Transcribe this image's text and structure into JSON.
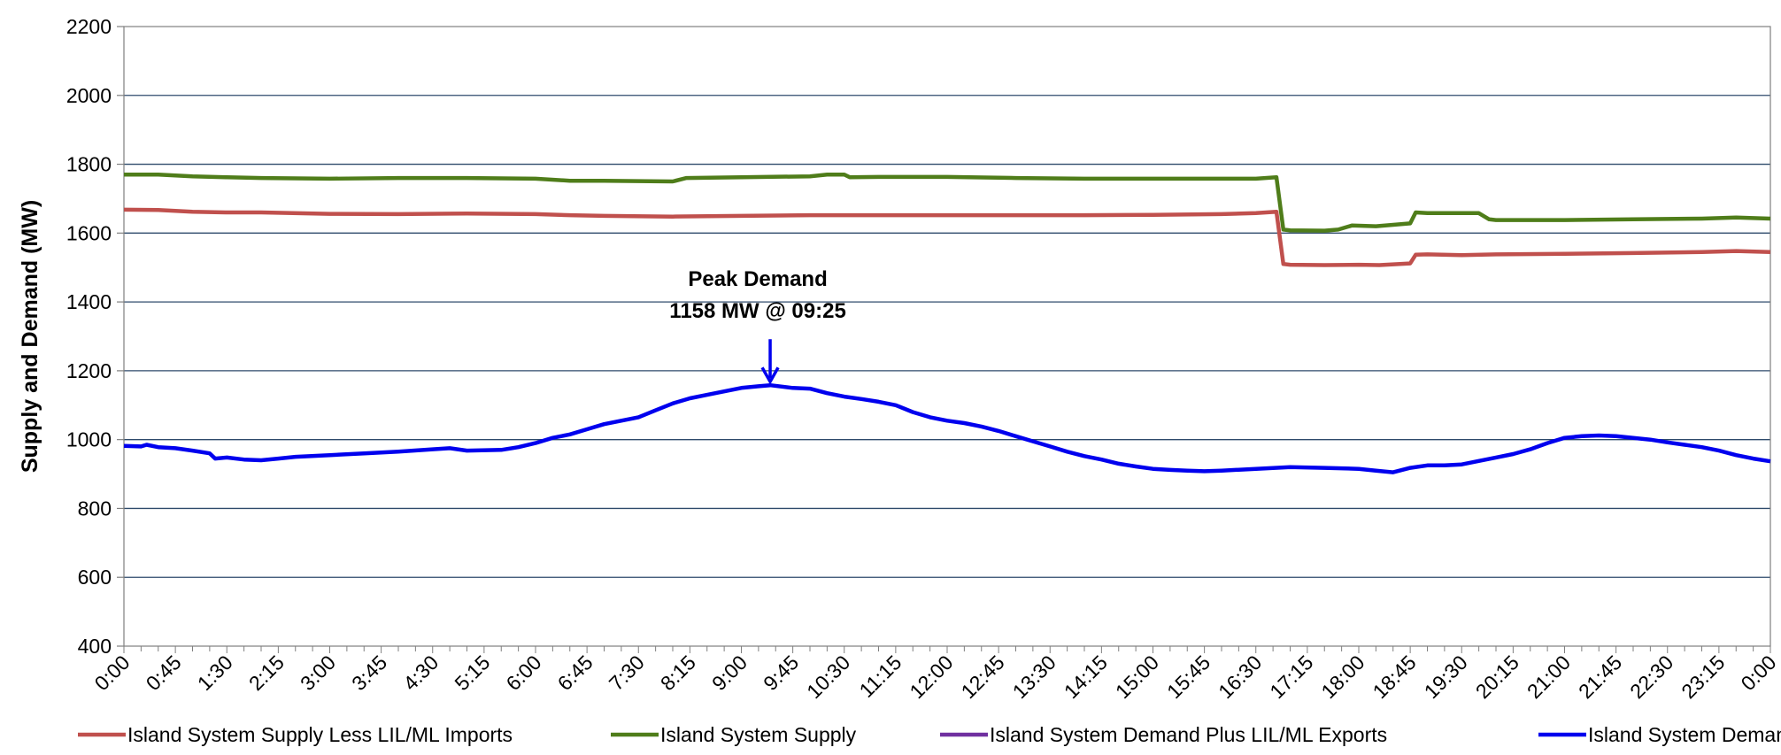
{
  "chart_data": {
    "type": "line",
    "title": "",
    "xlabel": "",
    "ylabel": "Supply and Demand (MW)",
    "ylim": [
      400,
      2200
    ],
    "yticks": [
      400,
      600,
      800,
      1000,
      1200,
      1400,
      1600,
      1800,
      2000,
      2200
    ],
    "grid": "horizontal",
    "legend_position": "bottom",
    "x_ticks": [
      "0:00",
      "0:45",
      "1:30",
      "2:15",
      "3:00",
      "3:45",
      "4:30",
      "5:15",
      "6:00",
      "6:45",
      "7:30",
      "8:15",
      "9:00",
      "9:45",
      "10:30",
      "11:15",
      "12:00",
      "12:45",
      "13:30",
      "14:15",
      "15:00",
      "15:45",
      "16:30",
      "17:15",
      "18:00",
      "18:45",
      "19:30",
      "20:15",
      "21:00",
      "21:45",
      "22:30",
      "23:15",
      "0:00"
    ],
    "series": [
      {
        "name": "Island System Supply Less LIL/ML Imports",
        "color": "#c0504d",
        "points": [
          [
            0,
            1668
          ],
          [
            0.5,
            1667
          ],
          [
            1,
            1662
          ],
          [
            1.5,
            1660
          ],
          [
            2,
            1660
          ],
          [
            3,
            1656
          ],
          [
            4,
            1655
          ],
          [
            5,
            1657
          ],
          [
            6,
            1655
          ],
          [
            6.5,
            1652
          ],
          [
            7,
            1650
          ],
          [
            8,
            1648
          ],
          [
            9,
            1650
          ],
          [
            10,
            1652
          ],
          [
            11,
            1652
          ],
          [
            12,
            1652
          ],
          [
            13,
            1652
          ],
          [
            14,
            1652
          ],
          [
            15,
            1653
          ],
          [
            16,
            1655
          ],
          [
            16.5,
            1658
          ],
          [
            16.8,
            1662
          ],
          [
            16.9,
            1510
          ],
          [
            17,
            1508
          ],
          [
            17.5,
            1507
          ],
          [
            18,
            1508
          ],
          [
            18.3,
            1507
          ],
          [
            18.75,
            1512
          ],
          [
            18.83,
            1537
          ],
          [
            19,
            1538
          ],
          [
            19.5,
            1536
          ],
          [
            20,
            1538
          ],
          [
            21,
            1540
          ],
          [
            22,
            1542
          ],
          [
            23,
            1545
          ],
          [
            23.5,
            1548
          ],
          [
            24,
            1545
          ]
        ]
      },
      {
        "name": "Island System Supply",
        "color": "#4f7d1a",
        "points": [
          [
            0,
            1770
          ],
          [
            0.5,
            1770
          ],
          [
            1,
            1765
          ],
          [
            1.5,
            1762
          ],
          [
            2,
            1760
          ],
          [
            3,
            1758
          ],
          [
            4,
            1760
          ],
          [
            5,
            1760
          ],
          [
            6,
            1758
          ],
          [
            6.5,
            1752
          ],
          [
            7,
            1752
          ],
          [
            8,
            1750
          ],
          [
            8.2,
            1760
          ],
          [
            9,
            1762
          ],
          [
            10,
            1765
          ],
          [
            10.25,
            1770
          ],
          [
            10.5,
            1770
          ],
          [
            10.58,
            1762
          ],
          [
            11,
            1763
          ],
          [
            12,
            1763
          ],
          [
            13,
            1760
          ],
          [
            14,
            1758
          ],
          [
            15,
            1758
          ],
          [
            16,
            1758
          ],
          [
            16.5,
            1758
          ],
          [
            16.8,
            1762
          ],
          [
            16.9,
            1610
          ],
          [
            17,
            1608
          ],
          [
            17.5,
            1607
          ],
          [
            17.7,
            1610
          ],
          [
            17.9,
            1622
          ],
          [
            18.25,
            1620
          ],
          [
            18.75,
            1628
          ],
          [
            18.83,
            1660
          ],
          [
            19,
            1658
          ],
          [
            19.5,
            1658
          ],
          [
            19.75,
            1658
          ],
          [
            19.9,
            1640
          ],
          [
            20,
            1638
          ],
          [
            21,
            1638
          ],
          [
            22,
            1640
          ],
          [
            23,
            1642
          ],
          [
            23.5,
            1645
          ],
          [
            24,
            1642
          ]
        ]
      },
      {
        "name": "Island System Demand Plus LIL/ML Exports",
        "color": "#7030a0",
        "points": []
      },
      {
        "name": "Island System Demand",
        "color": "#0000ee",
        "points": [
          [
            0,
            982
          ],
          [
            0.25,
            980
          ],
          [
            0.33,
            985
          ],
          [
            0.5,
            978
          ],
          [
            0.75,
            975
          ],
          [
            1,
            968
          ],
          [
            1.25,
            960
          ],
          [
            1.33,
            945
          ],
          [
            1.5,
            948
          ],
          [
            1.75,
            942
          ],
          [
            2,
            940
          ],
          [
            2.25,
            945
          ],
          [
            2.5,
            950
          ],
          [
            3,
            955
          ],
          [
            3.5,
            960
          ],
          [
            4,
            965
          ],
          [
            4.5,
            972
          ],
          [
            4.75,
            975
          ],
          [
            5,
            968
          ],
          [
            5.5,
            970
          ],
          [
            5.75,
            978
          ],
          [
            6,
            990
          ],
          [
            6.25,
            1005
          ],
          [
            6.5,
            1015
          ],
          [
            6.75,
            1030
          ],
          [
            7,
            1045
          ],
          [
            7.25,
            1055
          ],
          [
            7.5,
            1065
          ],
          [
            7.75,
            1085
          ],
          [
            8,
            1105
          ],
          [
            8.25,
            1120
          ],
          [
            8.5,
            1130
          ],
          [
            8.75,
            1140
          ],
          [
            9,
            1150
          ],
          [
            9.25,
            1155
          ],
          [
            9.42,
            1158
          ],
          [
            9.75,
            1150
          ],
          [
            10,
            1148
          ],
          [
            10.25,
            1135
          ],
          [
            10.5,
            1125
          ],
          [
            10.75,
            1118
          ],
          [
            11,
            1110
          ],
          [
            11.25,
            1100
          ],
          [
            11.5,
            1080
          ],
          [
            11.75,
            1065
          ],
          [
            12,
            1055
          ],
          [
            12.25,
            1048
          ],
          [
            12.5,
            1038
          ],
          [
            12.75,
            1025
          ],
          [
            13,
            1010
          ],
          [
            13.25,
            995
          ],
          [
            13.5,
            980
          ],
          [
            13.75,
            965
          ],
          [
            14,
            952
          ],
          [
            14.25,
            942
          ],
          [
            14.5,
            930
          ],
          [
            14.75,
            922
          ],
          [
            15,
            915
          ],
          [
            15.25,
            912
          ],
          [
            15.5,
            910
          ],
          [
            15.75,
            908
          ],
          [
            16,
            910
          ],
          [
            16.5,
            915
          ],
          [
            17,
            920
          ],
          [
            17.5,
            918
          ],
          [
            18,
            915
          ],
          [
            18.25,
            910
          ],
          [
            18.5,
            905
          ],
          [
            18.75,
            918
          ],
          [
            19,
            925
          ],
          [
            19.25,
            925
          ],
          [
            19.5,
            928
          ],
          [
            19.75,
            938
          ],
          [
            20,
            948
          ],
          [
            20.25,
            958
          ],
          [
            20.5,
            972
          ],
          [
            20.75,
            990
          ],
          [
            21,
            1005
          ],
          [
            21.25,
            1010
          ],
          [
            21.5,
            1012
          ],
          [
            21.75,
            1010
          ],
          [
            22,
            1005
          ],
          [
            22.25,
            1000
          ],
          [
            22.5,
            992
          ],
          [
            22.75,
            985
          ],
          [
            23,
            978
          ],
          [
            23.25,
            968
          ],
          [
            23.5,
            955
          ],
          [
            23.75,
            945
          ],
          [
            24,
            937
          ]
        ]
      }
    ],
    "annotations": [
      {
        "line1": "Peak Demand",
        "line2": "1158 MW @ 09:25",
        "x": 9.42,
        "y": 1158,
        "color": "#0000ee"
      }
    ]
  }
}
